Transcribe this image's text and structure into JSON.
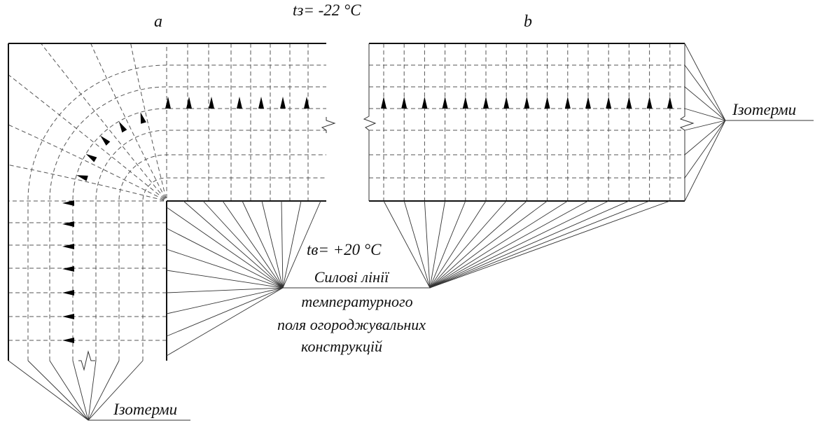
{
  "labels": {
    "panel_a": "a",
    "panel_b": "b",
    "t_outside": "tз= -22 °C",
    "t_inside": "tв= +20 °C",
    "field_lines": [
      "Силові лінії",
      "температурного",
      "поля огороджувальних",
      "конструкцій"
    ],
    "isotherms_right": "Ізотерми",
    "isotherms_bottom": "Ізотерми"
  },
  "colors": {
    "ink": "#111111",
    "grid": "#555555"
  }
}
